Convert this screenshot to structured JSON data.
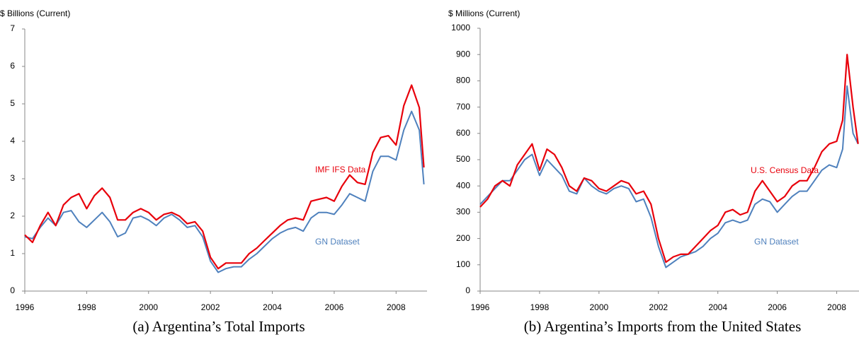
{
  "chart_data": [
    {
      "type": "line",
      "ylabel": "$ Billions (Current)",
      "caption": "(a) Argentina’s Total Imports",
      "x": [
        1996,
        1996.25,
        1996.5,
        1996.75,
        1997,
        1997.25,
        1997.5,
        1997.75,
        1998,
        1998.25,
        1998.5,
        1998.75,
        1999,
        1999.25,
        1999.5,
        1999.75,
        2000,
        2000.25,
        2000.5,
        2000.75,
        2001,
        2001.25,
        2001.5,
        2001.75,
        2002,
        2002.25,
        2002.5,
        2002.75,
        2003,
        2003.25,
        2003.5,
        2003.75,
        2004,
        2004.25,
        2004.5,
        2004.75,
        2005,
        2005.25,
        2005.5,
        2005.75,
        2006,
        2006.25,
        2006.5,
        2006.75,
        2007,
        2007.25,
        2007.5,
        2007.75,
        2008,
        2008.25,
        2008.5,
        2008.75,
        2008.9
      ],
      "series": [
        {
          "name": "IMF IFS Data",
          "color": "#e8000b",
          "values": [
            1.5,
            1.3,
            1.75,
            2.1,
            1.75,
            2.3,
            2.5,
            2.6,
            2.2,
            2.55,
            2.75,
            2.5,
            1.9,
            1.9,
            2.1,
            2.2,
            2.1,
            1.9,
            2.05,
            2.1,
            2.0,
            1.8,
            1.85,
            1.6,
            0.9,
            0.6,
            0.75,
            0.75,
            0.75,
            1.0,
            1.15,
            1.35,
            1.55,
            1.75,
            1.9,
            1.95,
            1.9,
            2.4,
            2.45,
            2.5,
            2.4,
            2.8,
            3.1,
            2.9,
            2.85,
            3.7,
            4.1,
            4.15,
            3.9,
            4.95,
            5.5,
            4.9,
            3.3
          ]
        },
        {
          "name": "GN Dataset",
          "color": "#4f81bd",
          "values": [
            1.45,
            1.4,
            1.7,
            1.95,
            1.75,
            2.1,
            2.15,
            1.85,
            1.7,
            1.9,
            2.1,
            1.85,
            1.45,
            1.55,
            1.95,
            2.0,
            1.9,
            1.75,
            1.95,
            2.05,
            1.9,
            1.7,
            1.75,
            1.45,
            0.8,
            0.5,
            0.6,
            0.65,
            0.65,
            0.85,
            1.0,
            1.2,
            1.4,
            1.55,
            1.65,
            1.7,
            1.6,
            1.95,
            2.1,
            2.1,
            2.05,
            2.3,
            2.6,
            2.5,
            2.4,
            3.2,
            3.6,
            3.6,
            3.5,
            4.3,
            4.8,
            4.3,
            2.85
          ]
        }
      ],
      "xlim": [
        1996,
        2009
      ],
      "xticks": [
        1996,
        1998,
        2000,
        2002,
        2004,
        2006,
        2008
      ],
      "ylim": [
        0,
        7
      ],
      "yticks": [
        0,
        1,
        2,
        3,
        4,
        5,
        6,
        7
      ]
    },
    {
      "type": "line",
      "ylabel": "$ Millions (Current)",
      "caption": "(b) Argentina’s Imports from the United States",
      "x": [
        1996,
        1996.25,
        1996.5,
        1996.75,
        1997,
        1997.25,
        1997.5,
        1997.75,
        1998,
        1998.25,
        1998.5,
        1998.75,
        1999,
        1999.25,
        1999.5,
        1999.75,
        2000,
        2000.25,
        2000.5,
        2000.75,
        2001,
        2001.25,
        2001.5,
        2001.75,
        2002,
        2002.25,
        2002.5,
        2002.75,
        2003,
        2003.25,
        2003.5,
        2003.75,
        2004,
        2004.25,
        2004.5,
        2004.75,
        2005,
        2005.25,
        2005.5,
        2005.75,
        2006,
        2006.25,
        2006.5,
        2006.75,
        2007,
        2007.25,
        2007.5,
        2007.75,
        2008,
        2008.2,
        2008.35,
        2008.55,
        2008.72
      ],
      "series": [
        {
          "name": "U.S. Census Data",
          "color": "#e8000b",
          "values": [
            320,
            350,
            400,
            420,
            400,
            480,
            520,
            560,
            460,
            540,
            520,
            470,
            400,
            380,
            430,
            420,
            390,
            380,
            400,
            420,
            410,
            370,
            380,
            330,
            200,
            110,
            130,
            140,
            140,
            170,
            200,
            230,
            250,
            300,
            310,
            290,
            300,
            380,
            420,
            380,
            340,
            360,
            400,
            420,
            420,
            470,
            530,
            560,
            570,
            650,
            900,
            700,
            560
          ]
        },
        {
          "name": "GN Dataset",
          "color": "#4f81bd",
          "values": [
            330,
            360,
            390,
            420,
            420,
            460,
            500,
            520,
            440,
            500,
            470,
            440,
            380,
            370,
            430,
            400,
            380,
            370,
            390,
            400,
            390,
            340,
            350,
            280,
            170,
            90,
            110,
            130,
            140,
            150,
            170,
            200,
            220,
            260,
            270,
            260,
            270,
            330,
            350,
            340,
            300,
            330,
            360,
            380,
            380,
            420,
            460,
            480,
            470,
            540,
            780,
            600,
            560
          ]
        }
      ],
      "xlim": [
        1996,
        2008.75
      ],
      "xticks": [
        1996,
        1998,
        2000,
        2002,
        2004,
        2006,
        2008
      ],
      "ylim": [
        0,
        1000
      ],
      "yticks": [
        0,
        100,
        200,
        300,
        400,
        500,
        600,
        700,
        800,
        900,
        1000
      ]
    }
  ]
}
